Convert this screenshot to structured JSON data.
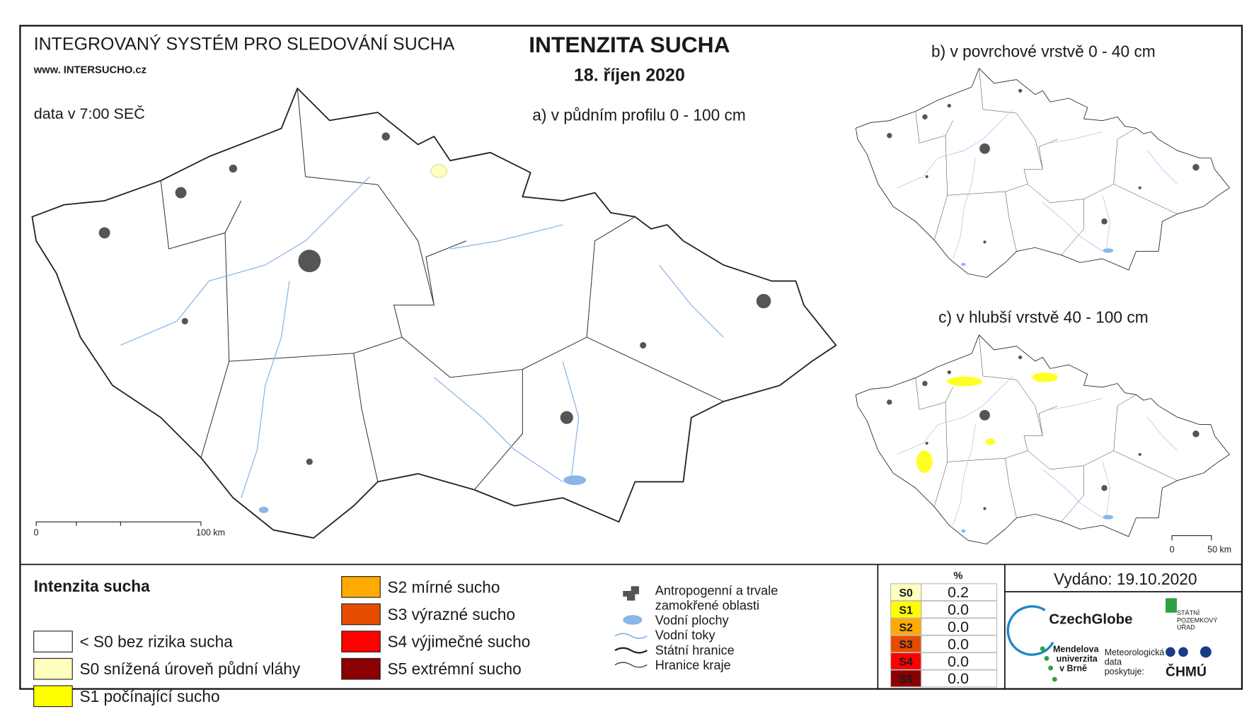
{
  "header": {
    "system_title": "INTEGROVANÝ SYSTÉM PRO SLEDOVÁNÍ SUCHA",
    "website": "www. INTERSUCHO.cz",
    "data_time": "data v 7:00 SEČ",
    "title": "INTENZITA SUCHA",
    "date": "18. říjen 2020"
  },
  "maps": [
    {
      "label": "a) v půdním profilu 0 - 100 cm",
      "scale_start": "0",
      "scale_end": "100 km"
    },
    {
      "label": "b) v povrchové vrstvě 0 - 40 cm"
    },
    {
      "label": "c) v hlubší vrstvě 40 - 100 cm",
      "scale_start": "0",
      "scale_end": "50 km"
    }
  ],
  "legend": {
    "title": "Intenzita sucha",
    "items": [
      {
        "label": "< S0 bez rizika sucha",
        "color": "#ffffff"
      },
      {
        "label": "S0 snížená úroveň půdní vláhy",
        "color": "#ffffc0"
      },
      {
        "label": "S1 počínající sucho",
        "color": "#ffff00"
      },
      {
        "label": "S2 mírné sucho",
        "color": "#ffaa00"
      },
      {
        "label": "S3 výrazné sucho",
        "color": "#e64c00"
      },
      {
        "label": "S4 výjimečné sucho",
        "color": "#ff0000"
      },
      {
        "label": "S5 extrémní sucho",
        "color": "#8b0000"
      }
    ]
  },
  "map_legend": {
    "items": [
      "Antropogenní a trvale",
      "zamokřené oblasti",
      "Vodní plochy",
      "Vodní toky",
      "Státní hranice",
      "Hranice kraje"
    ]
  },
  "table": {
    "header": "%",
    "rows": [
      {
        "label": "S0",
        "value": "0.2",
        "color": "#ffffc0"
      },
      {
        "label": "S1",
        "value": "0.0",
        "color": "#ffff00"
      },
      {
        "label": "S2",
        "value": "0.0",
        "color": "#ffaa00"
      },
      {
        "label": "S3",
        "value": "0.0",
        "color": "#e64c00"
      },
      {
        "label": "S4",
        "value": "0.0",
        "color": "#ff0000"
      },
      {
        "label": "S5",
        "value": "0.0",
        "color": "#8b0000"
      }
    ]
  },
  "footer": {
    "issued": "Vydáno: 19.10.2020",
    "czechglobe": "CzechGlobe",
    "spu": [
      "STÁTNÍ",
      "POZEMKOVÝ",
      "ÚŘAD"
    ],
    "mendelu": [
      "Mendelova",
      "univerzita",
      "v Brně"
    ],
    "meteo": [
      "Meteorologická",
      "data",
      "poskytuje:"
    ],
    "chmu": "ČHMÚ"
  }
}
